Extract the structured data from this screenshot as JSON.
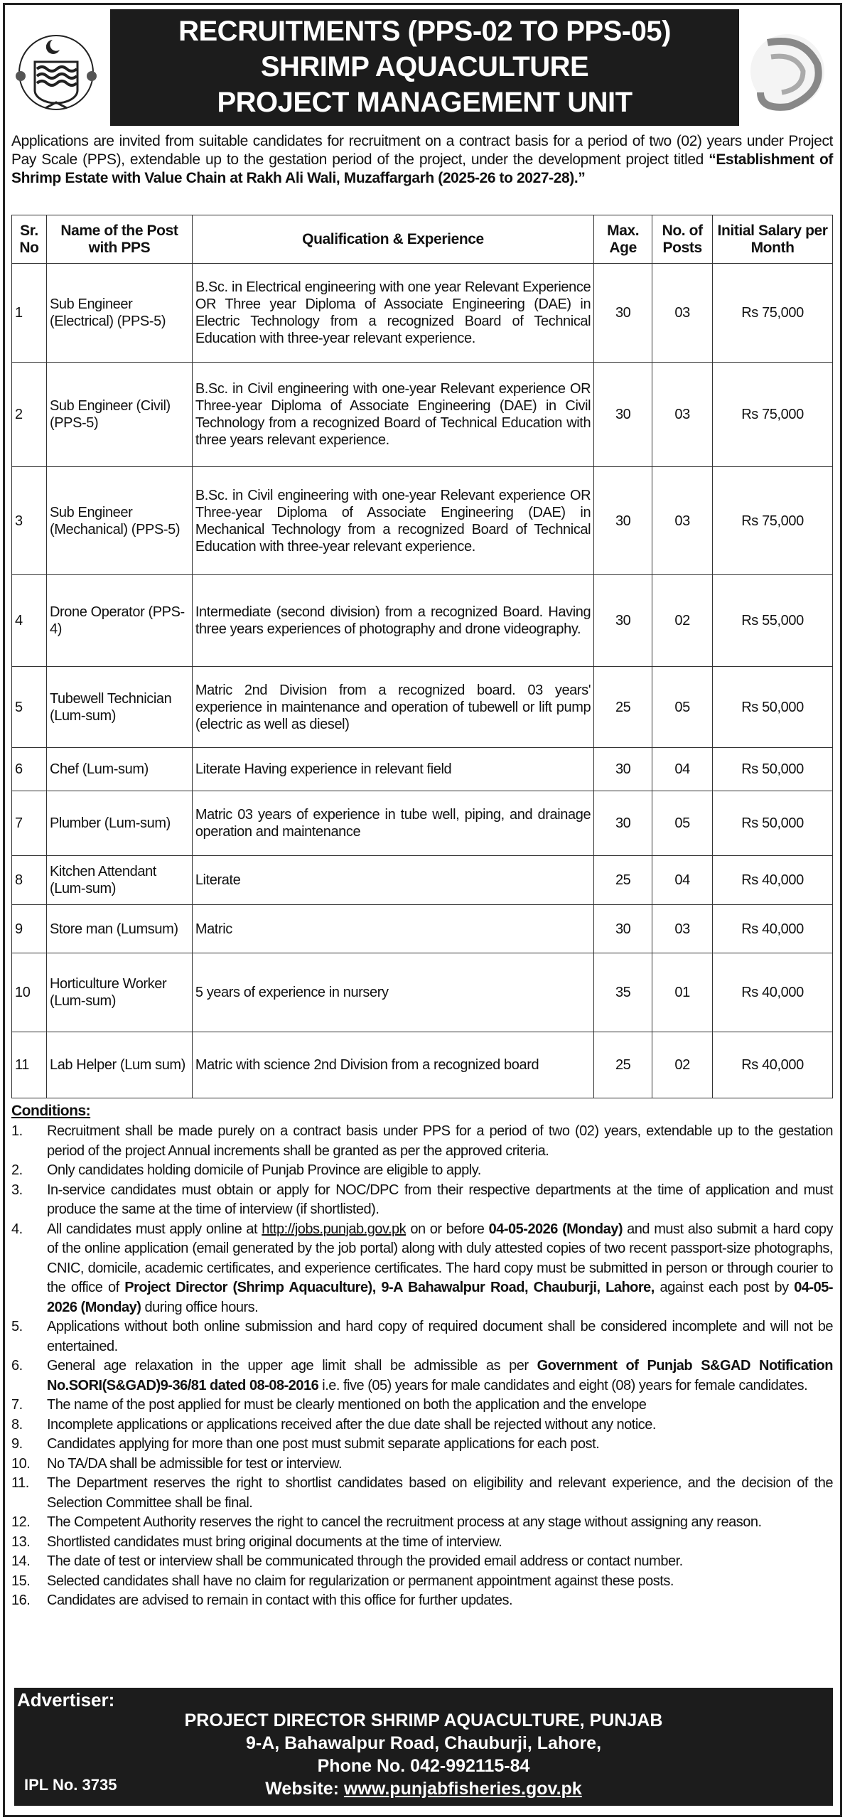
{
  "header": {
    "title_lines": [
      "RECRUITMENTS (PPS-02 TO PPS-05)",
      "SHRIMP AQUACULTURE",
      "PROJECT MANAGEMENT UNIT"
    ],
    "left_logo": "punjab-government-emblem",
    "right_logo": "shrimp-logo"
  },
  "intro": {
    "text": "Applications are invited from suitable candidates for recruitment on a contract basis for a period of two (02) years under Project Pay Scale (PPS), extendable up to the gestation period of the project, under the development project titled ",
    "bold": "“Establishment of Shrimp Estate with Value Chain at Rakh Ali Wali, Muzaffargarh (2025-26 to 2027-28).”"
  },
  "table": {
    "headers": [
      "Sr. No",
      "Name of the Post with PPS",
      "Qualification & Experience",
      "Max. Age",
      "No. of Posts",
      "Initial Salary per Month"
    ],
    "rows": [
      {
        "sr": "1",
        "post": "Sub Engineer (Electrical) (PPS-5)",
        "qual": "B.Sc. in Electrical engineering with one year Relevant Experience OR Three year Diploma of Associate Engineering (DAE) in Electric Technology from a recognized Board of Technical Education with three-year relevant experience.",
        "age": "30",
        "posts": "03",
        "salary": "Rs 75,000"
      },
      {
        "sr": "2",
        "post": "Sub Engineer (Civil) (PPS-5)",
        "qual": "B.Sc. in Civil engineering with one-year Relevant experience OR Three-year Diploma of Associate Engineering (DAE) in Civil Technology from a recognized Board of Technical Education with three years relevant experience.",
        "age": "30",
        "posts": "03",
        "salary": "Rs 75,000"
      },
      {
        "sr": "3",
        "post": "Sub Engineer (Mechanical) (PPS-5)",
        "qual": "B.Sc. in Civil engineering with one-year Relevant experience OR Three-year Diploma of Associate Engineering (DAE) in Mechanical Technology from a recognized Board of Technical Education with three-year relevant experience.",
        "age": "30",
        "posts": "03",
        "salary": "Rs 75,000"
      },
      {
        "sr": "4",
        "post": "Drone Operator (PPS-4)",
        "qual": "Intermediate (second division) from a recognized Board. Having three years experiences of photography and drone videography.",
        "age": "30",
        "posts": "02",
        "salary": "Rs 55,000"
      },
      {
        "sr": "5",
        "post": "Tubewell Technician (Lum-sum)",
        "qual": "Matric 2nd Division from a recognized board. 03 years' experience in maintenance and operation of tubewell or lift pump (electric as well as diesel)",
        "age": "25",
        "posts": "05",
        "salary": "Rs 50,000"
      },
      {
        "sr": "6",
        "post": "Chef (Lum-sum)",
        "qual": "Literate Having experience in relevant field",
        "age": "30",
        "posts": "04",
        "salary": "Rs 50,000"
      },
      {
        "sr": "7",
        "post": "Plumber (Lum-sum)",
        "qual": "Matric 03 years of experience in tube well, piping, and drainage operation and maintenance",
        "age": "30",
        "posts": "05",
        "salary": "Rs 50,000"
      },
      {
        "sr": "8",
        "post": "Kitchen Attendant (Lum-sum)",
        "qual": "Literate",
        "age": "25",
        "posts": "04",
        "salary": "Rs 40,000"
      },
      {
        "sr": "9",
        "post": "Store man (Lumsum)",
        "qual": "Matric",
        "age": "30",
        "posts": "03",
        "salary": "Rs 40,000"
      },
      {
        "sr": "10",
        "post": "Horticulture Worker (Lum-sum)",
        "qual": "5 years of experience in nursery",
        "age": "35",
        "posts": "01",
        "salary": "Rs 40,000"
      },
      {
        "sr": "11",
        "post": "Lab Helper (Lum sum)",
        "qual": "Matric with science 2nd Division from a recognized board",
        "age": "25",
        "posts": "02",
        "salary": "Rs 40,000"
      }
    ]
  },
  "conditions": {
    "heading": "Conditions:",
    "items": [
      {
        "n": "1.",
        "parts": [
          {
            "t": "Recruitment shall be made purely on a contract basis under PPS for a period of two (02) years, extendable up to the gestation period of the project Annual increments shall be granted as per the approved criteria."
          }
        ]
      },
      {
        "n": "2.",
        "parts": [
          {
            "t": "Only candidates holding domicile of Punjab Province are eligible to apply."
          }
        ]
      },
      {
        "n": "3.",
        "parts": [
          {
            "t": "In-service candidates must obtain or apply for NOC/DPC from their respective departments at the time of application and must produce the same at the time of interview (if shortlisted)."
          }
        ]
      },
      {
        "n": "4.",
        "parts": [
          {
            "t": "All candidates must apply online at "
          },
          {
            "t": "http://jobs.punjab.gov.pk",
            "link": true
          },
          {
            "t": " on or before "
          },
          {
            "t": "04-05-2026 (Monday)",
            "b": true
          },
          {
            "t": " and must also submit a hard copy of the online application (email generated by the job portal) along with duly attested copies of two recent passport-size photographs, CNIC, domicile, academic certificates, and experience certificates. The hard copy must be submitted in person or through courier to the office of "
          },
          {
            "t": "Project Director (Shrimp Aquaculture), 9-A Bahawalpur Road, Chauburji, Lahore,",
            "b": true
          },
          {
            "t": " against each post by "
          },
          {
            "t": "04-05-2026 (Monday)",
            "b": true
          },
          {
            "t": " during office hours."
          }
        ]
      },
      {
        "n": "5.",
        "parts": [
          {
            "t": "Applications without both online submission and hard copy of required document shall be considered incomplete and will not be entertained."
          }
        ]
      },
      {
        "n": "6.",
        "parts": [
          {
            "t": "General age relaxation in the upper age limit shall be admissible as per "
          },
          {
            "t": "Government of Punjab S&GAD Notification No.SORI(S&GAD)9-36/81 dated 08-08-2016",
            "b": true
          },
          {
            "t": " i.e. five (05) years for male candidates and eight (08) years for female candidates."
          }
        ]
      },
      {
        "n": "7.",
        "parts": [
          {
            "t": "The name of the post applied for must be clearly mentioned on both the application and the envelope"
          }
        ]
      },
      {
        "n": "8.",
        "parts": [
          {
            "t": "Incomplete applications or applications received after the due date shall be rejected without any notice."
          }
        ]
      },
      {
        "n": "9.",
        "parts": [
          {
            "t": "Candidates applying for more than one post must submit separate applications for each post."
          }
        ]
      },
      {
        "n": "10.",
        "parts": [
          {
            "t": "No TA/DA shall be admissible for test or interview."
          }
        ]
      },
      {
        "n": "11.",
        "parts": [
          {
            "t": "The Department reserves the right to shortlist candidates based on eligibility and relevant experience, and the decision of the Selection Committee shall be final."
          }
        ]
      },
      {
        "n": "12.",
        "parts": [
          {
            "t": "The Competent Authority reserves the right to cancel the recruitment process at any stage without assigning any reason."
          }
        ]
      },
      {
        "n": "13.",
        "parts": [
          {
            "t": "Shortlisted candidates must bring original documents at the time of interview."
          }
        ]
      },
      {
        "n": "14.",
        "parts": [
          {
            "t": "The date of test or interview shall be communicated through the provided email address or contact number."
          }
        ]
      },
      {
        "n": "15.",
        "parts": [
          {
            "t": "Selected candidates shall have no claim for regularization or permanent appointment against these posts."
          }
        ]
      },
      {
        "n": "16.",
        "parts": [
          {
            "t": "Candidates are advised to remain in contact with this office for further updates."
          }
        ]
      }
    ]
  },
  "advertiser": {
    "label": "Advertiser:",
    "name": "PROJECT DIRECTOR SHRIMP AQUACULTURE, PUNJAB",
    "address": "9-A, Bahawalpur Road, Chauburji, Lahore,",
    "phone": "Phone No. 042-992115-84",
    "website_label": "Website: ",
    "website": "www.punjabfisheries.gov.pk",
    "ipl": "IPL No. 3735"
  }
}
